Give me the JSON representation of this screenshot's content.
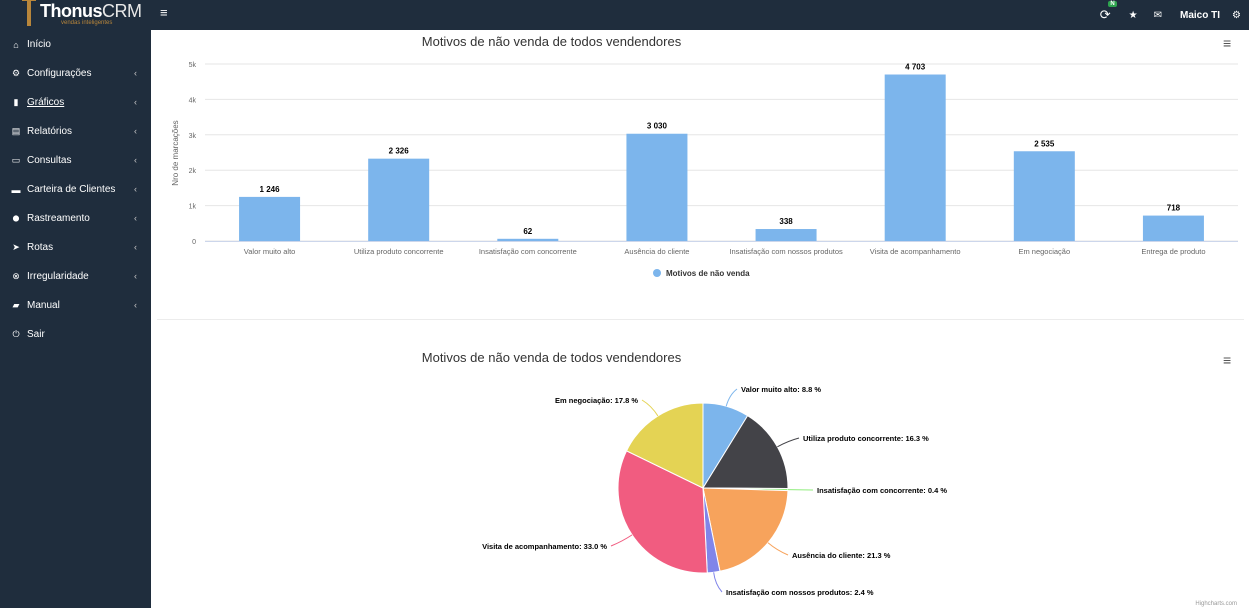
{
  "app": {
    "logo_name": "Thonus",
    "logo_suffix": "CRM",
    "logo_tagline": "vendas inteligentes",
    "user_name": "Maico TI",
    "notif_badge": "N"
  },
  "sidebar": {
    "items": [
      {
        "label": "Início",
        "icon": "home-icon",
        "has_chevron": false
      },
      {
        "label": "Configurações",
        "icon": "gears-icon",
        "has_chevron": true
      },
      {
        "label": "Gráficos",
        "icon": "bar-chart-icon",
        "has_chevron": true
      },
      {
        "label": "Relatórios",
        "icon": "file-icon",
        "has_chevron": true
      },
      {
        "label": "Consultas",
        "icon": "list-icon",
        "has_chevron": true
      },
      {
        "label": "Carteira de Clientes",
        "icon": "briefcase-icon",
        "has_chevron": true
      },
      {
        "label": "Rastreamento",
        "icon": "map-pin-icon",
        "has_chevron": true
      },
      {
        "label": "Rotas",
        "icon": "send-icon",
        "has_chevron": true
      },
      {
        "label": "Irregularidade",
        "icon": "times-circle-icon",
        "has_chevron": true
      },
      {
        "label": "Manual",
        "icon": "book-icon",
        "has_chevron": true
      },
      {
        "label": "Sair",
        "icon": "power-icon",
        "has_chevron": false
      }
    ]
  },
  "chart_data": [
    {
      "type": "bar",
      "title": "Motivos de não venda de todos vendendores",
      "xlabel": "",
      "ylabel": "Nro de marcações",
      "ylim": [
        0,
        5000
      ],
      "yticks": [
        "0",
        "1k",
        "2k",
        "3k",
        "4k",
        "5k"
      ],
      "ytick_values": [
        0,
        1000,
        2000,
        3000,
        4000,
        5000
      ],
      "categories": [
        "Valor muito alto",
        "Utiliza produto concorrente",
        "Insatisfação com concorrente",
        "Ausência do cliente",
        "Insatisfação com nossos produtos",
        "Visita de acompanhamento",
        "Em negociação",
        "Entrega de produto"
      ],
      "values": [
        1246,
        2326,
        62,
        3030,
        338,
        4703,
        2535,
        718
      ],
      "value_labels": [
        "1 246",
        "2 326",
        "62",
        "3 030",
        "338",
        "4 703",
        "2 535",
        "718"
      ],
      "series_name": "Motivos de não venda",
      "color": "#7cb5ec",
      "grid": true,
      "legend": "bottom-center"
    },
    {
      "type": "pie",
      "title": "Motivos de não venda de todos vendendores",
      "slices": [
        {
          "name": "Valor muito alto",
          "value": 8.8,
          "label": "Valor muito alto: 8.8 %",
          "color": "#7cb5ec"
        },
        {
          "name": "Utiliza produto concorrente",
          "value": 16.3,
          "label": "Utiliza produto concorrente: 16.3 %",
          "color": "#434348"
        },
        {
          "name": "Insatisfação com concorrente",
          "value": 0.4,
          "label": "Insatisfação com concorrente: 0.4 %",
          "color": "#90ed7d"
        },
        {
          "name": "Ausência do cliente",
          "value": 21.3,
          "label": "Ausência do cliente: 21.3 %",
          "color": "#f7a35c"
        },
        {
          "name": "Insatisfação com nossos produtos",
          "value": 2.4,
          "label": "Insatisfação com nossos produtos: 2.4 %",
          "color": "#8085e9"
        },
        {
          "name": "Visita de acompanhamento",
          "value": 33.0,
          "label": "Visita de acompanhamento: 33.0 %",
          "color": "#f15c80"
        },
        {
          "name": "Em negociação",
          "value": 17.8,
          "label": "Em negociação: 17.8 %",
          "color": "#e4d354"
        }
      ]
    }
  ],
  "credits": "Highcharts.com"
}
